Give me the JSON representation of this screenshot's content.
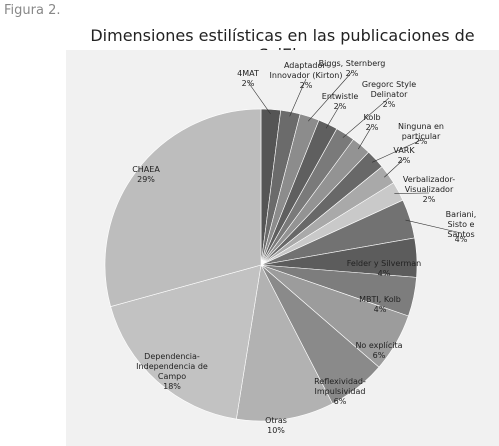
{
  "caption": "Figura 2.",
  "chart_data": {
    "type": "pie",
    "title": "Dimensiones estilísticas en las publicaciones de SciElo",
    "categories": [
      "4MAT",
      "Adaptador-\nInnovador (Kirton)",
      "Biggs, Sternberg",
      "Entwistle",
      "Gregorc Style\nDelinator",
      "Kolb",
      "Ninguna en particular",
      "VARK",
      "Verbalizador-\nVisualizador",
      "Bariani, Sisto e\nSantos",
      "Felder y Silverman",
      "MBTI, Kolb",
      "No explícita",
      "Reflexividad-\nImpulsividad",
      "Otras",
      "Dependencia-\nIndependencia de\nCampo",
      "CHAEA"
    ],
    "values": [
      2,
      2,
      2,
      2,
      2,
      2,
      2,
      2,
      2,
      4,
      4,
      4,
      6,
      6,
      10,
      18,
      29
    ],
    "value_labels": [
      "2%",
      "2%",
      "2%",
      "2%",
      "2%",
      "2%",
      "2%",
      "2%",
      "2%",
      "4%",
      "4%",
      "4%",
      "6%",
      "6%",
      "10%",
      "18%",
      "29%"
    ],
    "colors": [
      "#555555",
      "#6b6b6b",
      "#8c8c8c",
      "#5f5f5f",
      "#7a7a7a",
      "#939393",
      "#686868",
      "#a9a9a9",
      "#c9c9c9",
      "#727272",
      "#5c5c5c",
      "#7d7d7d",
      "#9c9c9c",
      "#8a8a8a",
      "#b2b2b2",
      "#c2c2c2",
      "#bdbdbd"
    ]
  }
}
